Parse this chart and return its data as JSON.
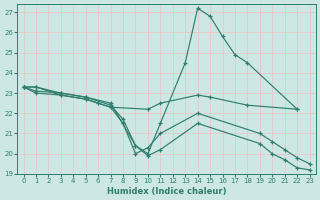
{
  "xlabel": "Humidex (Indice chaleur)",
  "background_color": "#cde8e4",
  "grid_color": "#e8c8c8",
  "line_color": "#2e7d6e",
  "xlim": [
    -0.5,
    23.5
  ],
  "ylim": [
    19,
    27.4
  ],
  "yticks": [
    19,
    20,
    21,
    22,
    23,
    24,
    25,
    26,
    27
  ],
  "xticks": [
    0,
    1,
    2,
    3,
    4,
    5,
    6,
    7,
    8,
    9,
    10,
    11,
    12,
    13,
    14,
    15,
    16,
    17,
    18,
    19,
    20,
    21,
    22,
    23
  ],
  "lines": [
    {
      "x": [
        0,
        1,
        3,
        5,
        7,
        9,
        10,
        11,
        13,
        14,
        15,
        16,
        17,
        18,
        22
      ],
      "y": [
        23.3,
        23.3,
        23.0,
        22.8,
        22.5,
        20.4,
        20.0,
        21.5,
        24.5,
        27.2,
        26.8,
        25.8,
        24.9,
        24.5,
        22.2
      ]
    },
    {
      "x": [
        0,
        1,
        3,
        5,
        7,
        10,
        11,
        14,
        15,
        18,
        22
      ],
      "y": [
        23.3,
        23.3,
        22.9,
        22.7,
        22.3,
        22.2,
        22.5,
        22.9,
        22.8,
        22.4,
        22.2
      ]
    },
    {
      "x": [
        0,
        1,
        3,
        5,
        6,
        7,
        8,
        9,
        10,
        11,
        14,
        19,
        20,
        21,
        22,
        23
      ],
      "y": [
        23.3,
        23.0,
        22.9,
        22.7,
        22.5,
        22.3,
        21.5,
        20.0,
        20.3,
        21.0,
        22.0,
        21.0,
        20.6,
        20.2,
        19.8,
        19.5
      ]
    },
    {
      "x": [
        0,
        1,
        3,
        5,
        7,
        8,
        9,
        10,
        11,
        14,
        19,
        20,
        21,
        22,
        23
      ],
      "y": [
        23.3,
        23.1,
        23.0,
        22.8,
        22.4,
        21.7,
        20.4,
        19.9,
        20.2,
        21.5,
        20.5,
        20.0,
        19.7,
        19.3,
        19.2
      ]
    }
  ]
}
